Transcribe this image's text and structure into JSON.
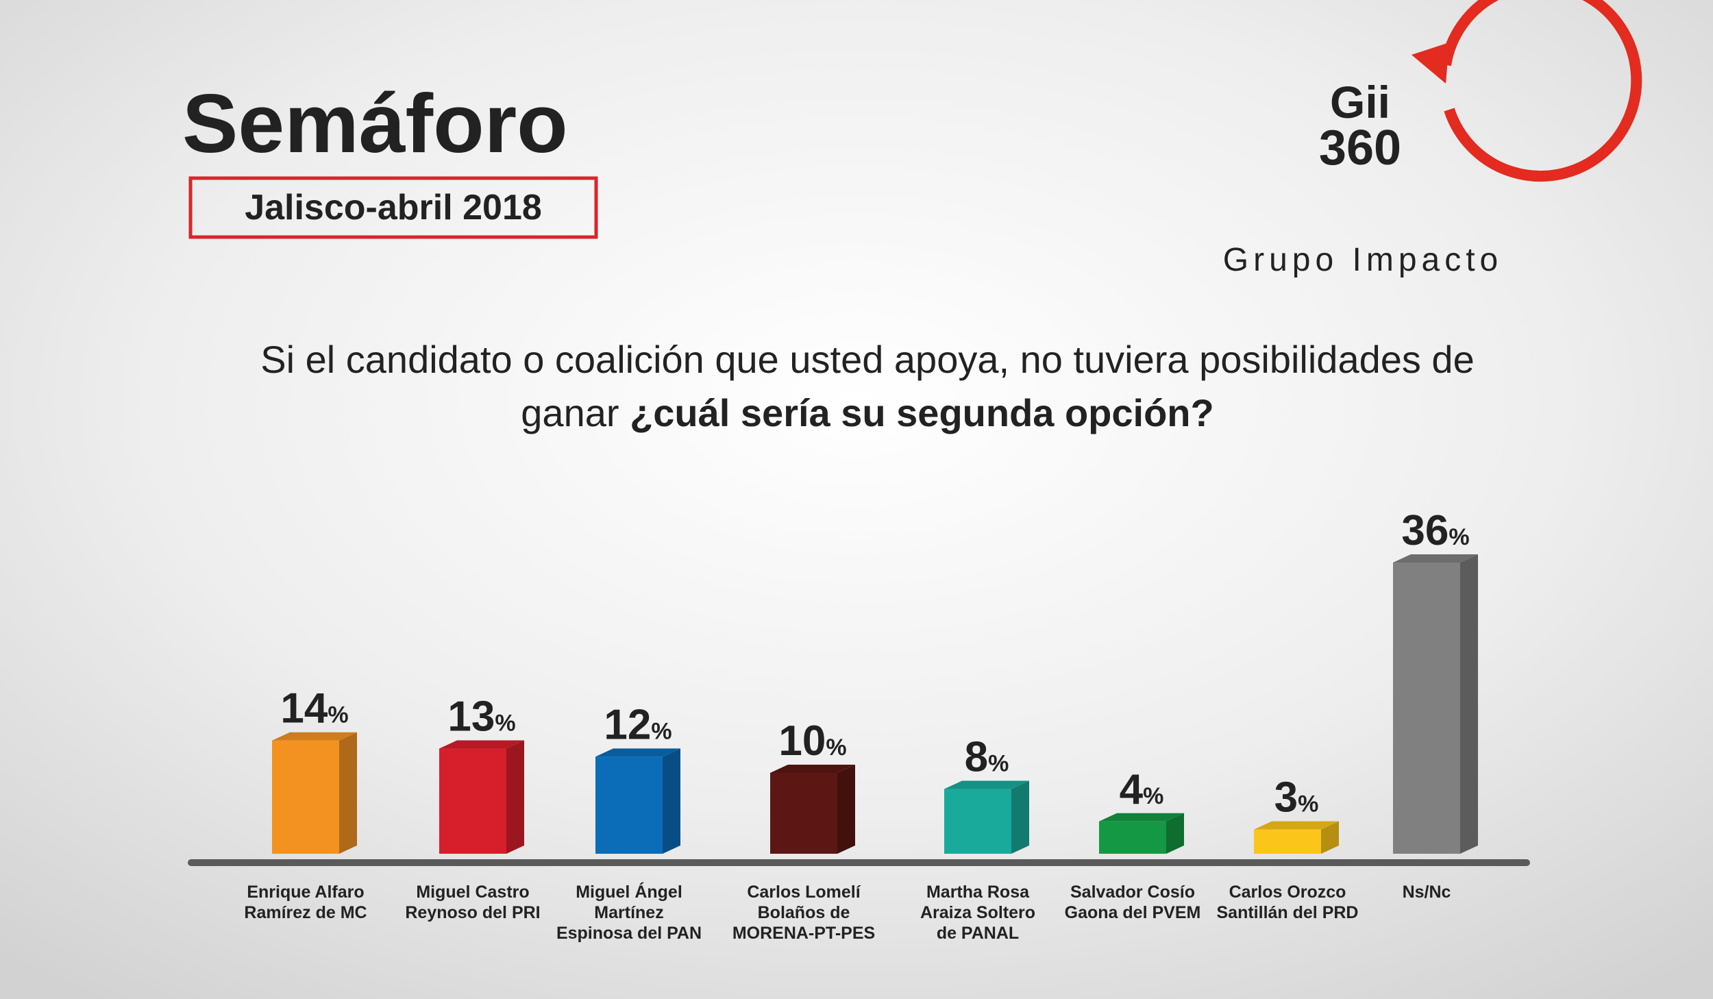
{
  "chart_data": {
    "type": "bar",
    "title": "Semáforo",
    "subtitle_box": "Jalisco-abril 2018",
    "brand": {
      "logo_top": "Gii",
      "logo_bottom": "360",
      "name": "Grupo Impacto"
    },
    "question": {
      "line1": "Si el candidato o coalición que usted apoya, no tuviera posibilidades de",
      "line2": "ganar",
      "line2_bold": "¿cuál sería su segunda opción?"
    },
    "categories": [
      "Enrique Alfaro\nRamírez de MC",
      "Miguel Castro\nReynoso del PRI",
      "Miguel Ángel\nMartínez\nEspinosa del PAN",
      "Carlos Lomelí\nBolaños de\nMORENA-PT-PES",
      "Martha Rosa\nAraiza Soltero\nde PANAL",
      "Salvador Cosío\nGaona del PVEM",
      "Carlos Orozco\nSantillán del PRD",
      "Ns/Nc"
    ],
    "values": [
      14,
      13,
      12,
      10,
      8,
      4,
      3,
      36
    ],
    "value_labels": [
      "14%",
      "13%",
      "12%",
      "10%",
      "8%",
      "4%",
      "3%",
      "36%"
    ],
    "colors": [
      "#f39221",
      "#d71f2b",
      "#0b6db7",
      "#5c1714",
      "#1aaa9b",
      "#159843",
      "#fcc519",
      "#808080"
    ]
  }
}
